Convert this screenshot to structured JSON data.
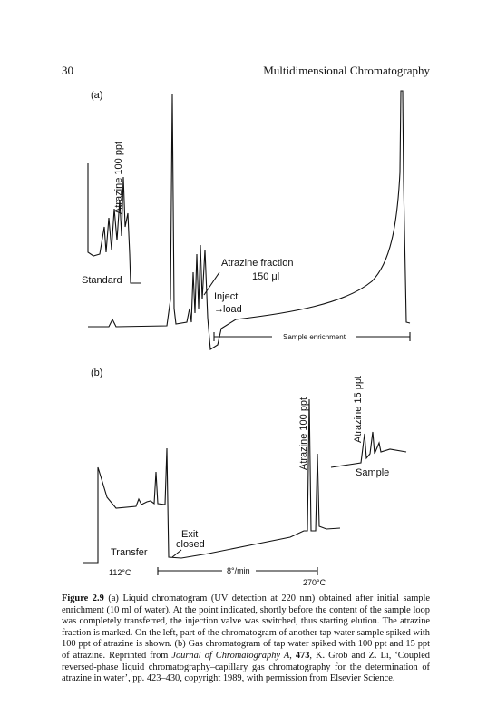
{
  "header": {
    "page_number": "30",
    "running_title": "Multidimensional Chromatography"
  },
  "figure": {
    "panel_a": {
      "label": "(a)",
      "peak_label": "Atrazine 100 ppt",
      "standard": "Standard",
      "fraction": "Atrazine fraction",
      "volume": "150 μl",
      "inject": "Inject",
      "load": "load",
      "enrichment": "Sample enrichment"
    },
    "panel_b": {
      "label": "(b)",
      "peak_label_1": "Atrazine 100 ppt",
      "peak_label_2": "Atrazine 15 ppt",
      "sample": "Sample",
      "exit": "Exit",
      "closed": "closed",
      "transfer": "Transfer",
      "start_temp": "112°C",
      "rate": "8°/min",
      "end_temp": "270°C"
    }
  },
  "caption": {
    "label": "Figure 2.9",
    "text_1": " (a) Liquid chromatogram (UV detection at 220 nm) obtained after initial sample enrichment (10 ml of water). At the point indicated, shortly before the content of the sample loop was completely transferred, the injection valve was switched, thus starting elution. The atrazine fraction is marked. On the left, part of the chromatogram of another tap water sample spiked with 100 ppt of atrazine is shown. (b) Gas chromatogram of tap water spiked with 100 ppt and 15 ppt of atrazine. Reprinted from ",
    "journal": "Journal of Chromatography A",
    "text_2": ", ",
    "volume": "473",
    "text_3": ", K. Grob and Z. Li, ‘Coupled reversed-phase liquid chromatography–capillary gas chromatography for the determination of atrazine in water’, pp. 423–430, copyright 1989, with permission from Elsevier Science."
  }
}
